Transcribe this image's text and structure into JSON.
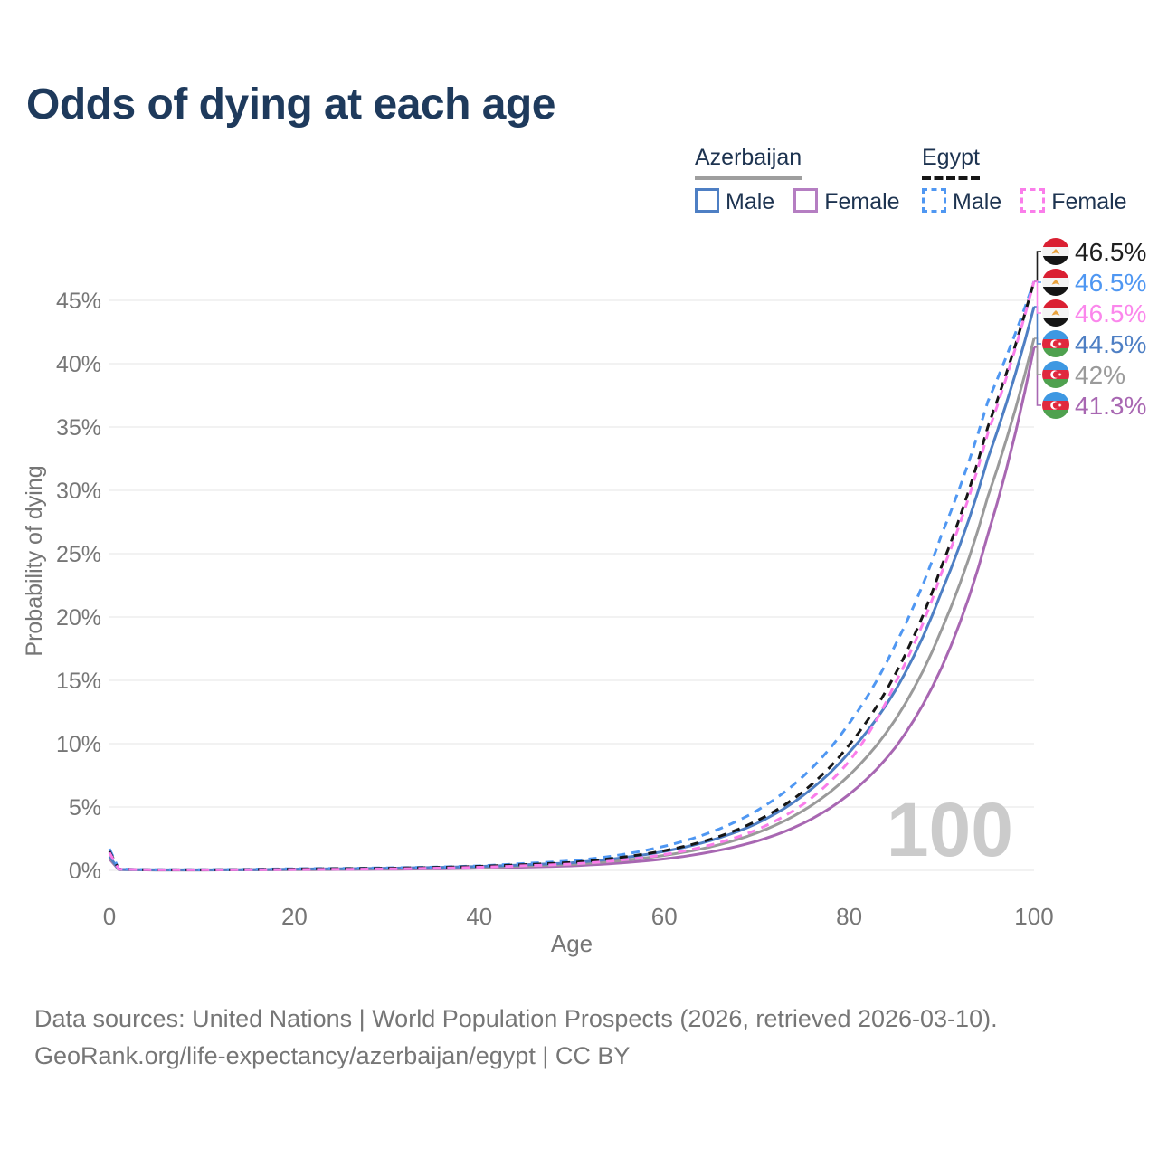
{
  "title": "Odds of dying at each age",
  "watermark": "100",
  "legend": {
    "groups": [
      {
        "id": "azerbaijan",
        "label": "Azerbaijan",
        "dash": false,
        "underline_color": "#9e9e9e",
        "items": [
          {
            "id": "male",
            "label": "Male",
            "color": "#4e7fc4"
          },
          {
            "id": "female",
            "label": "Female",
            "color": "#b57ec2"
          }
        ]
      },
      {
        "id": "egypt",
        "label": "Egypt",
        "dash": true,
        "underline_color": "#161616",
        "items": [
          {
            "id": "male",
            "label": "Male",
            "color": "#4f97f2"
          },
          {
            "id": "female",
            "label": "Female",
            "color": "#fa7dea"
          }
        ]
      }
    ]
  },
  "chart_data": {
    "type": "line",
    "title": "Odds of dying at each age",
    "xlabel": "Age",
    "ylabel": "Probability of dying",
    "xlim": [
      0,
      100
    ],
    "ylim_pct": [
      0,
      46.5
    ],
    "grid": true,
    "legend_position": "top-right",
    "x_ticks": [
      0,
      20,
      40,
      60,
      80,
      100
    ],
    "y_tick_values": [
      0,
      5,
      10,
      15,
      20,
      25,
      30,
      35,
      40,
      45
    ],
    "y_tick_labels": [
      "0%",
      "5%",
      "10%",
      "15%",
      "20%",
      "25%",
      "30%",
      "35%",
      "40%",
      "45%"
    ],
    "x": [
      0,
      1,
      5,
      10,
      15,
      20,
      25,
      30,
      35,
      40,
      45,
      50,
      55,
      60,
      65,
      70,
      75,
      80,
      85,
      90,
      95,
      100
    ],
    "series": [
      {
        "id": "azerbaijan-female",
        "name": "Azerbaijan Female",
        "country": "Azerbaijan",
        "sex": "Female",
        "color": "#a867b2",
        "dashed": false,
        "flag": "azerbaijan",
        "label_slot": 5,
        "end_label": "41.3%",
        "label_color": "#a867b2",
        "values": [
          0.9,
          0.06,
          0.03,
          0.03,
          0.04,
          0.05,
          0.07,
          0.09,
          0.12,
          0.18,
          0.26,
          0.36,
          0.57,
          0.9,
          1.45,
          2.3,
          3.7,
          6.0,
          9.7,
          16.0,
          26.5,
          41.3
        ]
      },
      {
        "id": "azerbaijan-both",
        "name": "Azerbaijan Both sexes",
        "country": "Azerbaijan",
        "sex": "Both sexes",
        "color": "#9a9a9a",
        "dashed": false,
        "flag": "azerbaijan",
        "label_slot": 4,
        "end_label": "42%",
        "label_color": "#9a9a9a",
        "values": [
          1.0,
          0.07,
          0.03,
          0.03,
          0.05,
          0.07,
          0.1,
          0.13,
          0.17,
          0.24,
          0.35,
          0.48,
          0.75,
          1.18,
          1.85,
          2.95,
          4.7,
          7.5,
          11.9,
          19.0,
          29.5,
          42.0
        ]
      },
      {
        "id": "azerbaijan-male",
        "name": "Azerbaijan Male",
        "country": "Azerbaijan",
        "sex": "Male",
        "color": "#4e7fc4",
        "dashed": false,
        "flag": "azerbaijan",
        "label_slot": 3,
        "end_label": "44.5%",
        "label_color": "#4e7fc4",
        "values": [
          1.1,
          0.08,
          0.04,
          0.04,
          0.06,
          0.1,
          0.13,
          0.17,
          0.23,
          0.31,
          0.44,
          0.6,
          0.95,
          1.5,
          2.35,
          3.7,
          5.9,
          9.3,
          14.2,
          22.0,
          32.5,
          44.5
        ]
      },
      {
        "id": "egypt-male",
        "name": "Egypt Male",
        "country": "Egypt",
        "sex": "Male",
        "color": "#4f97f2",
        "dashed": true,
        "flag": "egypt",
        "label_slot": 1,
        "end_label": "46.5%",
        "label_color": "#4f97f2",
        "values": [
          1.7,
          0.12,
          0.05,
          0.05,
          0.09,
          0.13,
          0.16,
          0.2,
          0.26,
          0.36,
          0.55,
          0.75,
          1.2,
          1.9,
          3.0,
          4.7,
          7.4,
          11.6,
          17.8,
          26.5,
          37.0,
          46.5
        ]
      },
      {
        "id": "egypt-both",
        "name": "Egypt Both sexes",
        "country": "Egypt",
        "sex": "Both sexes",
        "color": "#161616",
        "dashed": true,
        "flag": "egypt",
        "label_slot": 0,
        "end_label": "46.5%",
        "label_color": "#1f1f1f",
        "values": [
          1.5,
          0.11,
          0.04,
          0.04,
          0.07,
          0.11,
          0.14,
          0.17,
          0.23,
          0.32,
          0.46,
          0.62,
          1.0,
          1.55,
          2.45,
          3.9,
          6.2,
          9.9,
          15.5,
          24.0,
          35.0,
          46.5
        ]
      },
      {
        "id": "egypt-female",
        "name": "Egypt Female",
        "country": "Egypt",
        "sex": "Female",
        "color": "#fa7dea",
        "dashed": true,
        "flag": "egypt",
        "label_slot": 2,
        "end_label": "46.5%",
        "label_color": "#fb87ec",
        "values": [
          1.4,
          0.1,
          0.04,
          0.04,
          0.05,
          0.07,
          0.09,
          0.12,
          0.17,
          0.25,
          0.37,
          0.5,
          0.78,
          1.25,
          2.0,
          3.2,
          5.2,
          8.6,
          14.8,
          23.5,
          34.5,
          46.5
        ]
      }
    ]
  },
  "footer": {
    "line1": "Data sources: United Nations | World Population Prospects (2026, retrieved 2026-03-10).",
    "line2": "GeoRank.org/life-expectancy/azerbaijan/egypt | CC BY"
  }
}
